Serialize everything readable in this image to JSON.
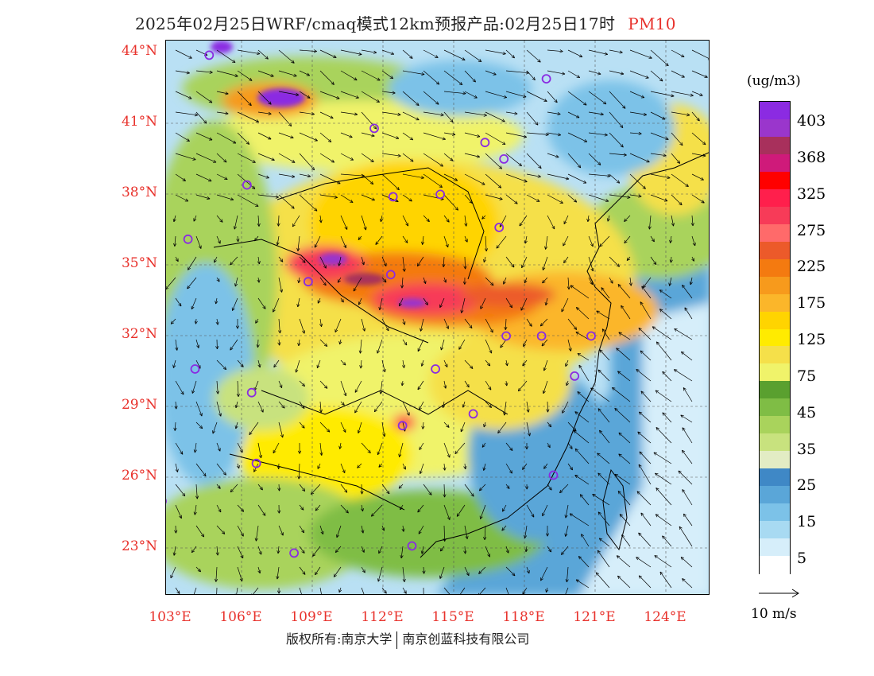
{
  "title": {
    "main": "2025年02月25日WRF/cmaq模式12km预报产品:02月25日17时",
    "pollutant": "PM10"
  },
  "axes": {
    "lat_labels": [
      "44°N",
      "41°N",
      "38°N",
      "35°N",
      "32°N",
      "29°N",
      "26°N",
      "23°N"
    ],
    "lon_labels": [
      "103°E",
      "106°E",
      "109°E",
      "112°E",
      "115°E",
      "118°E",
      "121°E",
      "124°E"
    ]
  },
  "legend": {
    "unit": "(ug/m3)",
    "colors": [
      "#ffffff",
      "#d6eefa",
      "#a8daf2",
      "#7cc2e8",
      "#5aa6d8",
      "#3f88c6",
      "#e2ecc4",
      "#c8e27e",
      "#a9d35c",
      "#7fbd45",
      "#5aa02f",
      "#f0f36a",
      "#f5e04a",
      "#ffeb00",
      "#ffd400",
      "#fbb62a",
      "#f79a1c",
      "#f47a10",
      "#ec5a2a",
      "#ff6a6a",
      "#f73b58",
      "#ff1f4c",
      "#ff0000",
      "#cf1a7a",
      "#a8305c",
      "#9a36cc",
      "#8b2be2"
    ],
    "labels": [
      "5",
      "15",
      "25",
      "35",
      "45",
      "75",
      "125",
      "175",
      "225",
      "275",
      "325",
      "368",
      "403"
    ]
  },
  "wind_reference": {
    "label": "10 m/s"
  },
  "stations": [
    {
      "lat": 43.9,
      "lon": 104.7
    },
    {
      "lat": 42.9,
      "lon": 119.0
    },
    {
      "lat": 40.8,
      "lon": 111.7
    },
    {
      "lat": 40.2,
      "lon": 116.4
    },
    {
      "lat": 39.5,
      "lon": 117.2
    },
    {
      "lat": 38.4,
      "lon": 106.3
    },
    {
      "lat": 37.9,
      "lon": 112.5
    },
    {
      "lat": 38.0,
      "lon": 114.5
    },
    {
      "lat": 36.6,
      "lon": 117.0
    },
    {
      "lat": 36.1,
      "lon": 103.8
    },
    {
      "lat": 34.6,
      "lon": 112.4
    },
    {
      "lat": 34.3,
      "lon": 108.9
    },
    {
      "lat": 32.0,
      "lon": 117.3
    },
    {
      "lat": 32.0,
      "lon": 118.8
    },
    {
      "lat": 32.0,
      "lon": 120.9
    },
    {
      "lat": 30.6,
      "lon": 114.3
    },
    {
      "lat": 30.6,
      "lon": 104.1
    },
    {
      "lat": 30.3,
      "lon": 120.2
    },
    {
      "lat": 29.6,
      "lon": 106.5
    },
    {
      "lat": 28.7,
      "lon": 115.9
    },
    {
      "lat": 28.2,
      "lon": 112.9
    },
    {
      "lat": 26.6,
      "lon": 106.7
    },
    {
      "lat": 26.1,
      "lon": 119.3
    },
    {
      "lat": 25.0,
      "lon": 102.7
    },
    {
      "lat": 22.8,
      "lon": 108.3
    },
    {
      "lat": 23.1,
      "lon": 113.3
    }
  ],
  "copyright": {
    "left": "版权所有:南京大学",
    "right": "南京创蓝科技有限公司"
  }
}
